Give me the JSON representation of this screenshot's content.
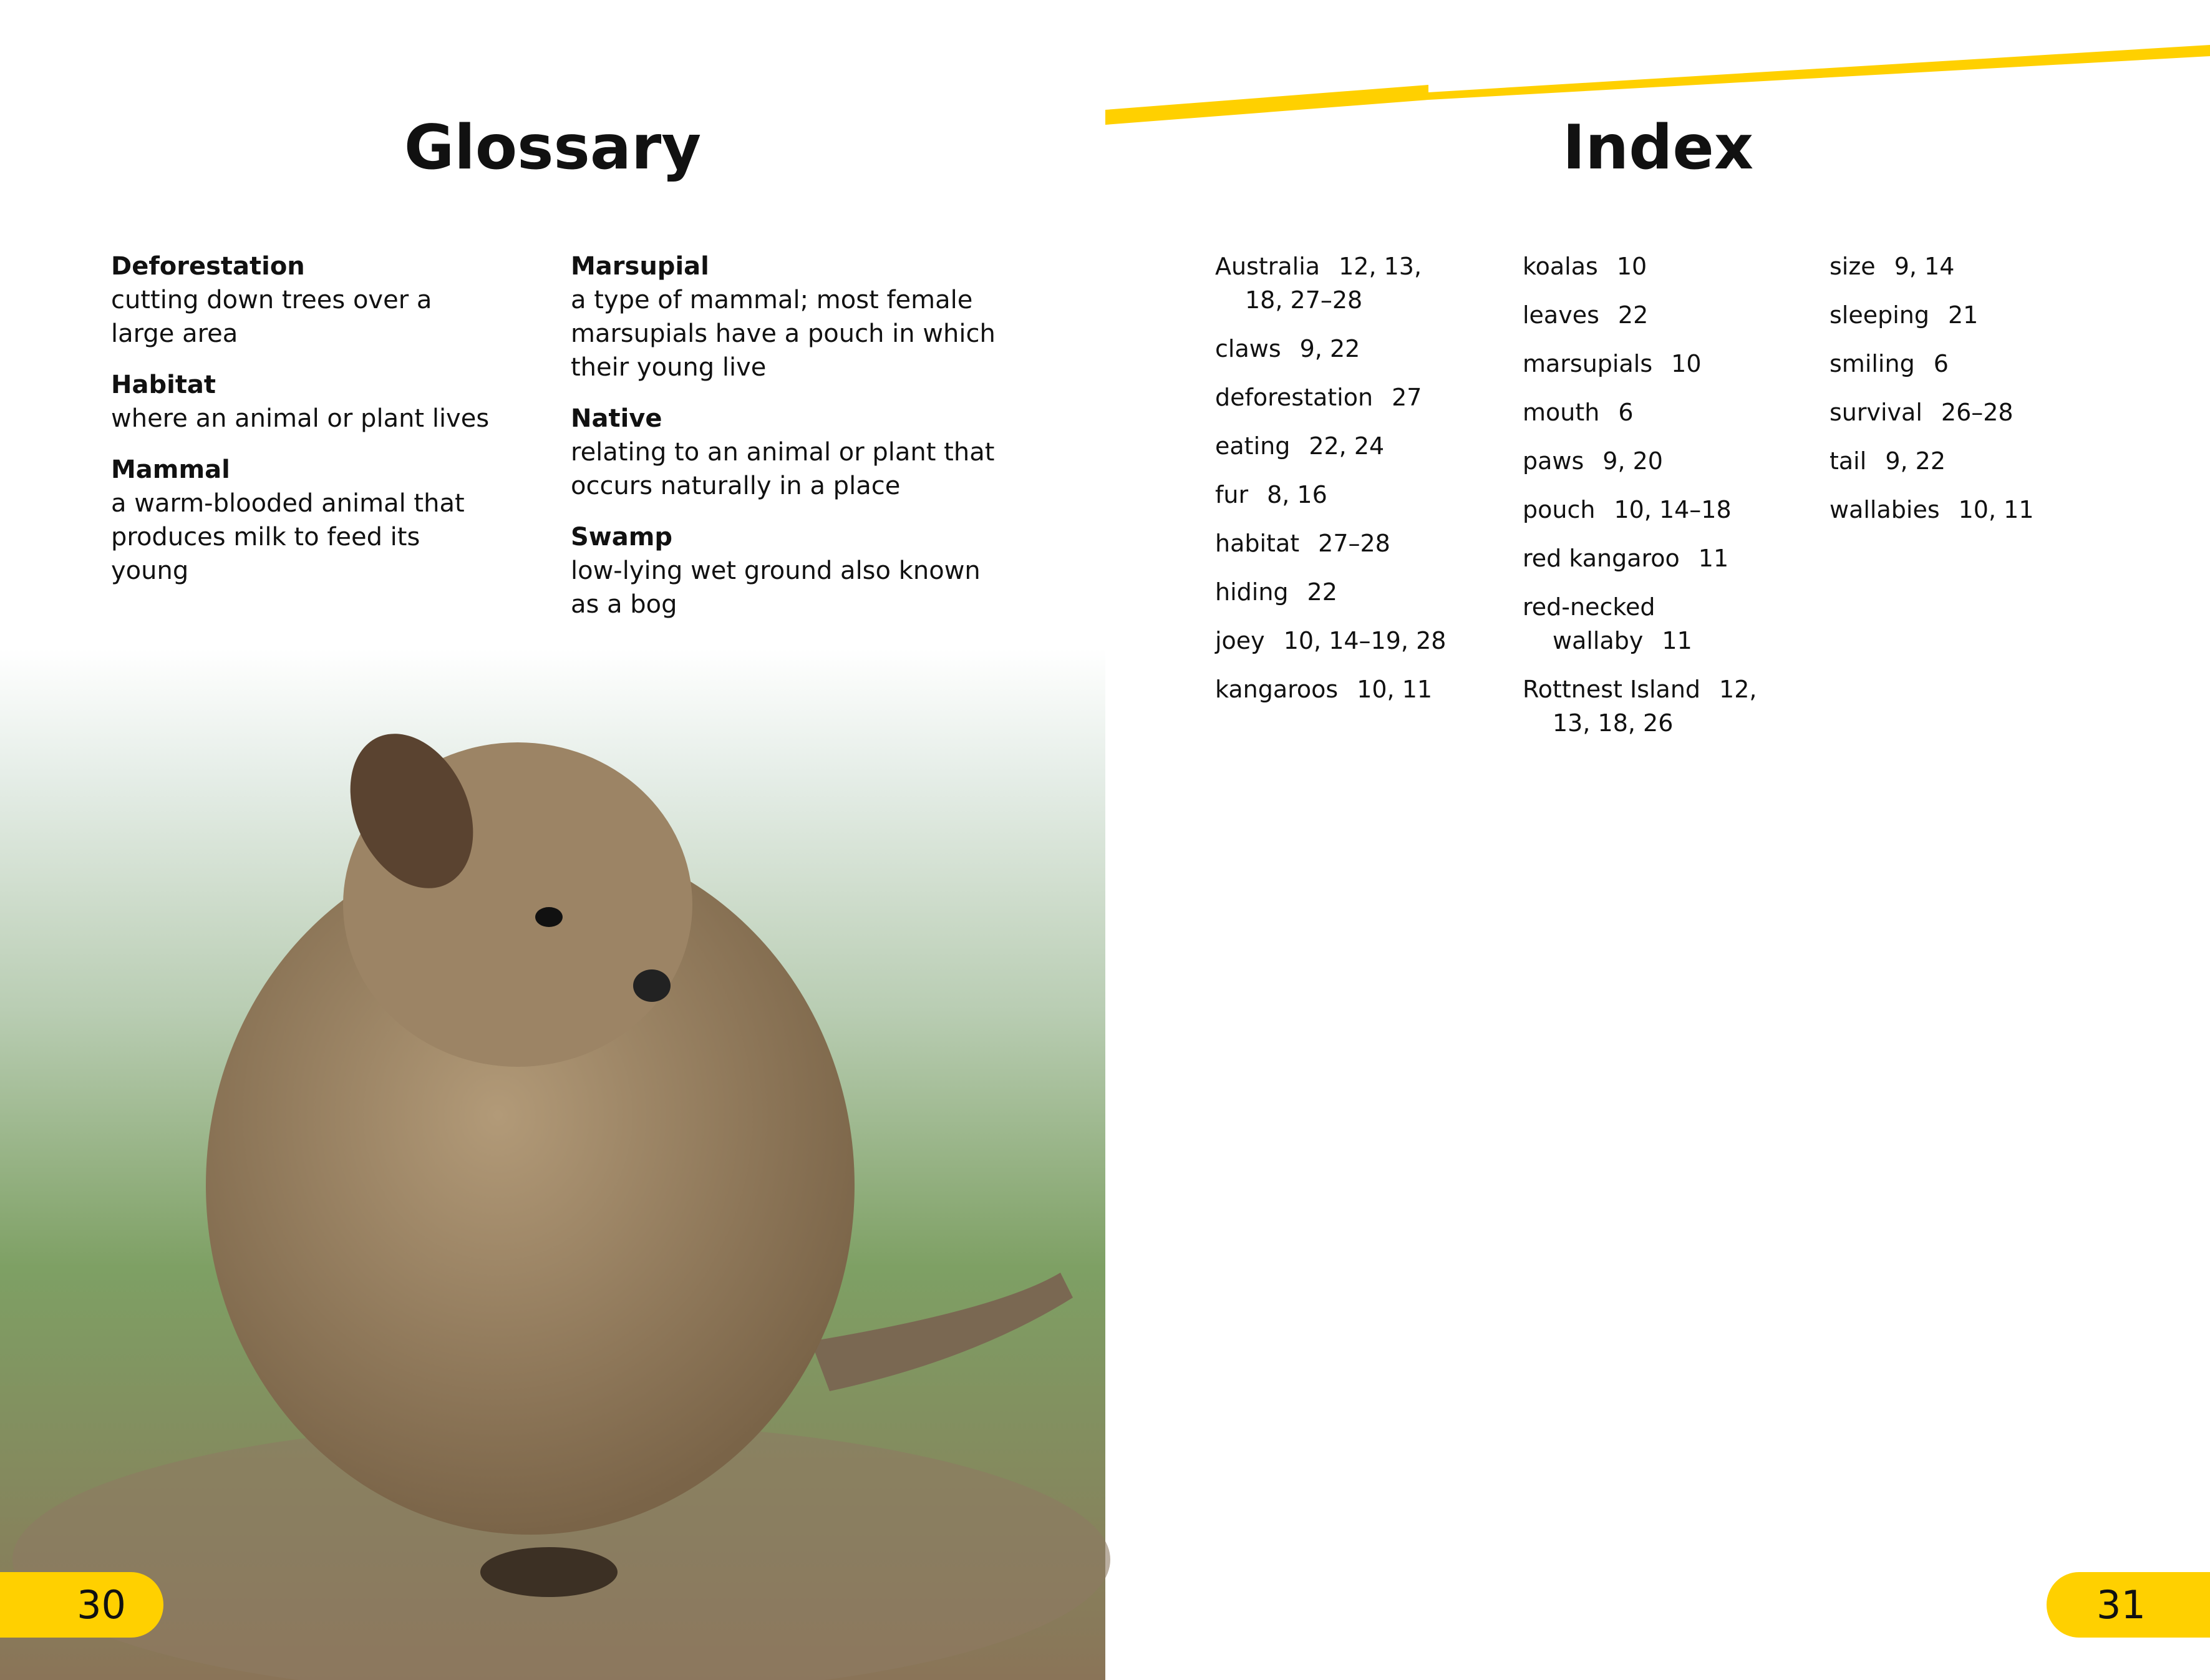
{
  "glossary": {
    "title": "Glossary",
    "entries": [
      {
        "term": "Deforestation",
        "definition": "cutting down trees over a large area"
      },
      {
        "term": "Habitat",
        "definition": "where an animal or plant lives"
      },
      {
        "term": "Mammal",
        "definition": "a warm-blooded animal that produces milk to feed its young"
      },
      {
        "term": "Marsupial",
        "definition": "a type of mammal; most female marsupials have a pouch in which their young live"
      },
      {
        "term": "Native",
        "definition": "relating to an animal or plant that occurs naturally in a place"
      },
      {
        "term": "Swamp",
        "definition": "low-lying wet ground also known as a bog"
      }
    ]
  },
  "index": {
    "title": "Index",
    "columns": [
      [
        {
          "term": "Australia",
          "pages": "12, 13, 18, 27–28"
        },
        {
          "term": "claws",
          "pages": "9, 22"
        },
        {
          "term": "deforestation",
          "pages": "27"
        },
        {
          "term": "eating",
          "pages": "22, 24"
        },
        {
          "term": "fur",
          "pages": "8, 16"
        },
        {
          "term": "habitat",
          "pages": "27–28"
        },
        {
          "term": "hiding",
          "pages": "22"
        },
        {
          "term": "joey",
          "pages": "10, 14–19, 28"
        },
        {
          "term": "kangaroos",
          "pages": "10, 11"
        }
      ],
      [
        {
          "term": "koalas",
          "pages": "10"
        },
        {
          "term": "leaves",
          "pages": "22"
        },
        {
          "term": "marsupials",
          "pages": "10"
        },
        {
          "term": "mouth",
          "pages": "6"
        },
        {
          "term": "paws",
          "pages": "9, 20"
        },
        {
          "term": "pouch",
          "pages": "10, 14–18"
        },
        {
          "term": "red kangaroo",
          "pages": "11"
        },
        {
          "term": "red-necked wallaby",
          "pages": "11"
        },
        {
          "term": "Rottnest Island",
          "pages": "12, 13, 18, 26"
        }
      ],
      [
        {
          "term": "size",
          "pages": "9, 14"
        },
        {
          "term": "sleeping",
          "pages": "21"
        },
        {
          "term": "smiling",
          "pages": "6"
        },
        {
          "term": "survival",
          "pages": "26–28"
        },
        {
          "term": "tail",
          "pages": "9, 22"
        },
        {
          "term": "wallabies",
          "pages": "10, 11"
        }
      ]
    ]
  },
  "page_numbers": [
    "30",
    "31"
  ]
}
